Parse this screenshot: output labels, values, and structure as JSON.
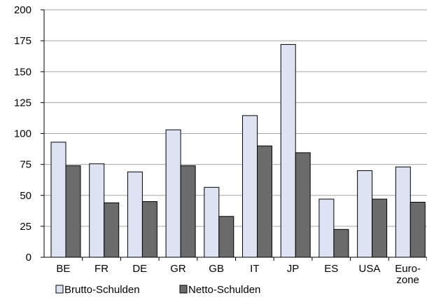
{
  "chart_data": {
    "type": "bar",
    "title": "",
    "xlabel": "",
    "ylabel": "",
    "categories": [
      [
        "BE"
      ],
      [
        "FR"
      ],
      [
        "DE"
      ],
      [
        "GR"
      ],
      [
        "GB"
      ],
      [
        "IT"
      ],
      [
        "JP"
      ],
      [
        "ES"
      ],
      [
        "USA"
      ],
      [
        "Euro-",
        "zone"
      ]
    ],
    "series": [
      {
        "name": "Brutto-Schulden",
        "color": "#dde3f3",
        "values": [
          93,
          75.5,
          69,
          103,
          56.5,
          114.5,
          172,
          47,
          70,
          73
        ]
      },
      {
        "name": "Netto-Schulden",
        "color": "#6b6b6b",
        "values": [
          74,
          44,
          45,
          74,
          33,
          90,
          84.5,
          22.5,
          47,
          44.5
        ]
      }
    ],
    "ylim": [
      0,
      200
    ],
    "yticks": [
      0,
      25,
      50,
      75,
      100,
      125,
      150,
      175,
      200
    ],
    "grid": true,
    "legend_position": "bottom-left"
  }
}
